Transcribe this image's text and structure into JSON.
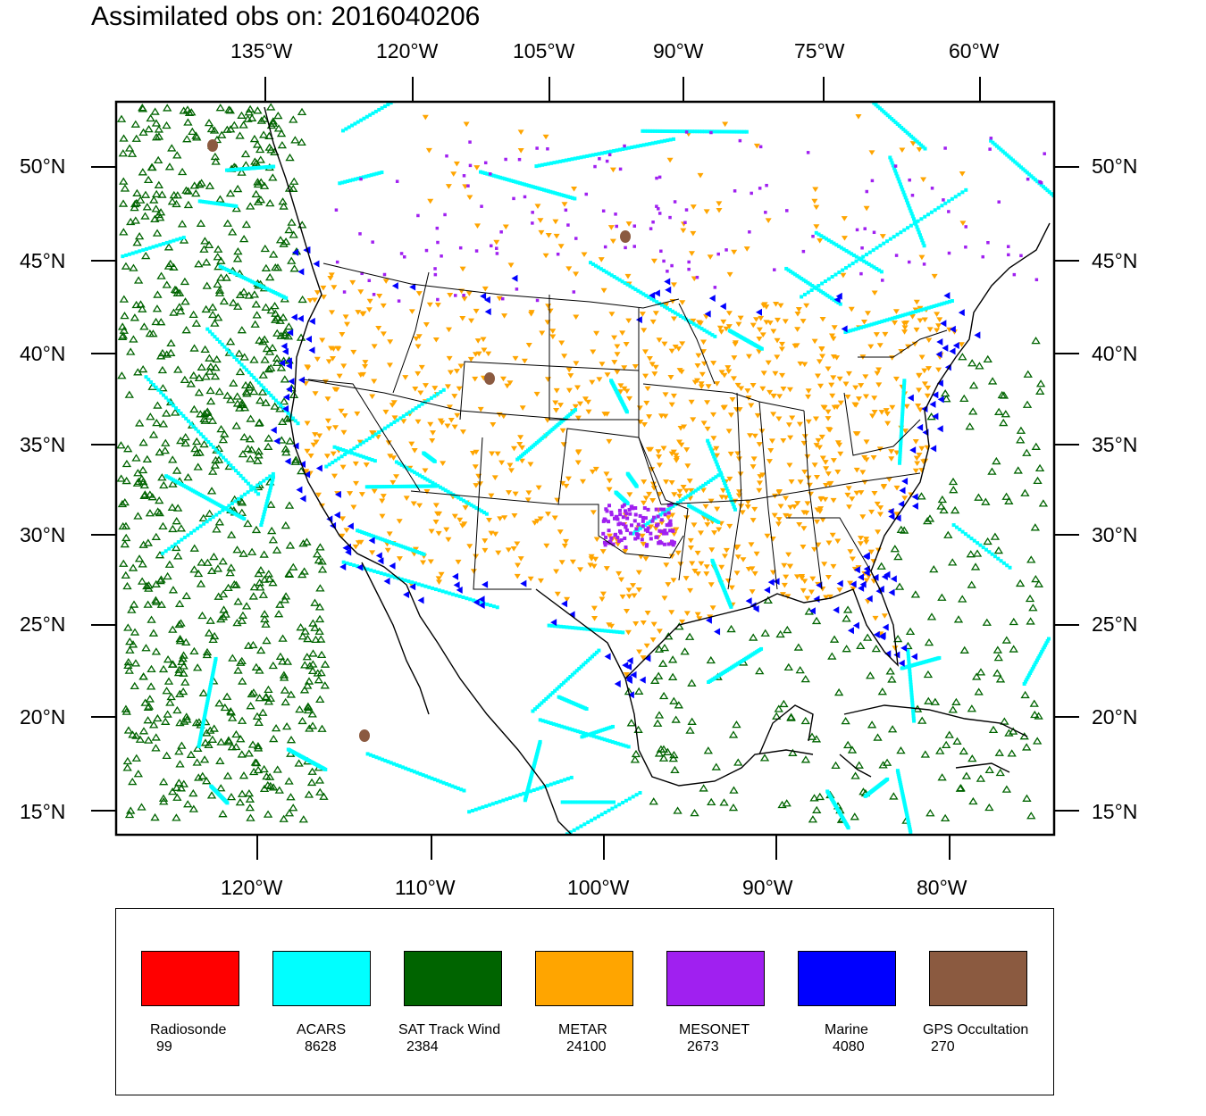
{
  "title": "Assimilated obs on: 2016040206",
  "top_axis_labels": [
    "135°W",
    "120°W",
    "105°W",
    "90°W",
    "75°W",
    "60°W"
  ],
  "bottom_axis_labels": [
    "120°W",
    "110°W",
    "100°W",
    "90°W",
    "80°W"
  ],
  "left_axis_labels": [
    "50°N",
    "45°N",
    "40°N",
    "35°N",
    "30°N",
    "25°N",
    "20°N",
    "15°N"
  ],
  "right_axis_labels": [
    "50°N",
    "45°N",
    "40°N",
    "35°N",
    "30°N",
    "25°N",
    "20°N",
    "15°N"
  ],
  "legend": [
    {
      "name": "Radiosonde",
      "count": "99",
      "color": "#ff0000"
    },
    {
      "name": "ACARS",
      "count": "8628",
      "color": "#00ffff"
    },
    {
      "name": "SAT Track Wind",
      "count": "2384",
      "color": "#006400"
    },
    {
      "name": "METAR",
      "count": "24100",
      "color": "#ffa500"
    },
    {
      "name": "MESONET",
      "count": "2673",
      "color": "#a020f0"
    },
    {
      "name": "Marine",
      "count": "4080",
      "color": "#0000ff"
    },
    {
      "name": "GPS Occultation",
      "count": "270",
      "color": "#8b5a40"
    }
  ]
}
